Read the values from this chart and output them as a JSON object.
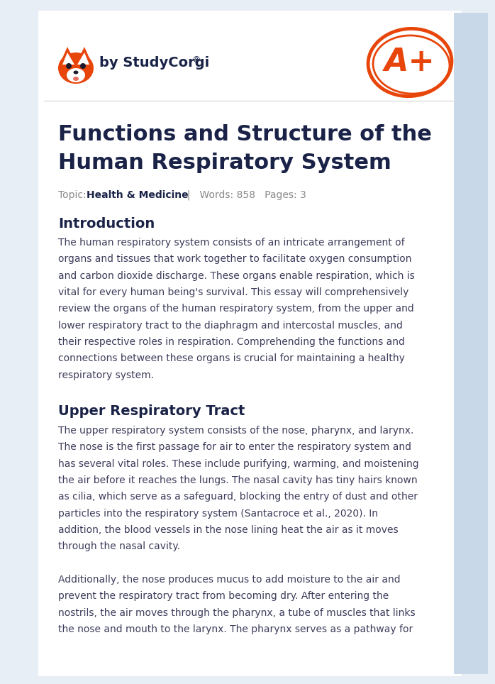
{
  "bg_color": "#e8eef5",
  "page_bg": "#ffffff",
  "title_color": "#1a2347",
  "body_color": "#3d3d5c",
  "section_color": "#1a2347",
  "orange_color": "#e8450a",
  "topic_label_color": "#888888",
  "topic_bold_color": "#1a2347",
  "side_strip_color": "#c8d8e8",
  "logo_text": "by StudyCorgi",
  "registered": "®",
  "main_title_line1": "Functions and Structure of the",
  "main_title_line2": "Human Respiratory System",
  "section1_heading": "Introduction",
  "section1_body": "The human respiratory system consists of an intricate arrangement of\norgans and tissues that work together to facilitate oxygen consumption\nand carbon dioxide discharge. These organs enable respiration, which is\nvital for every human being's survival. This essay will comprehensively\nreview the organs of the human respiratory system, from the upper and\nlower respiratory tract to the diaphragm and intercostal muscles, and\ntheir respective roles in respiration. Comprehending the functions and\nconnections between these organs is crucial for maintaining a healthy\nrespiratory system.",
  "section2_heading": "Upper Respiratory Tract",
  "section2_body": "The upper respiratory system consists of the nose, pharynx, and larynx.\nThe nose is the first passage for air to enter the respiratory system and\nhas several vital roles. These include purifying, warming, and moistening\nthe air before it reaches the lungs. The nasal cavity has tiny hairs known\nas cilia, which serve as a safeguard, blocking the entry of dust and other\nparticles into the respiratory system (Santacroce et al., 2020). In\naddition, the blood vessels in the nose lining heat the air as it moves\nthrough the nasal cavity.",
  "section2_body2": "Additionally, the nose produces mucus to add moisture to the air and\nprevent the respiratory tract from becoming dry. After entering the\nnostrils, the air moves through the pharynx, a tube of muscles that links\nthe nose and mouth to the larynx. The pharynx serves as a pathway for"
}
